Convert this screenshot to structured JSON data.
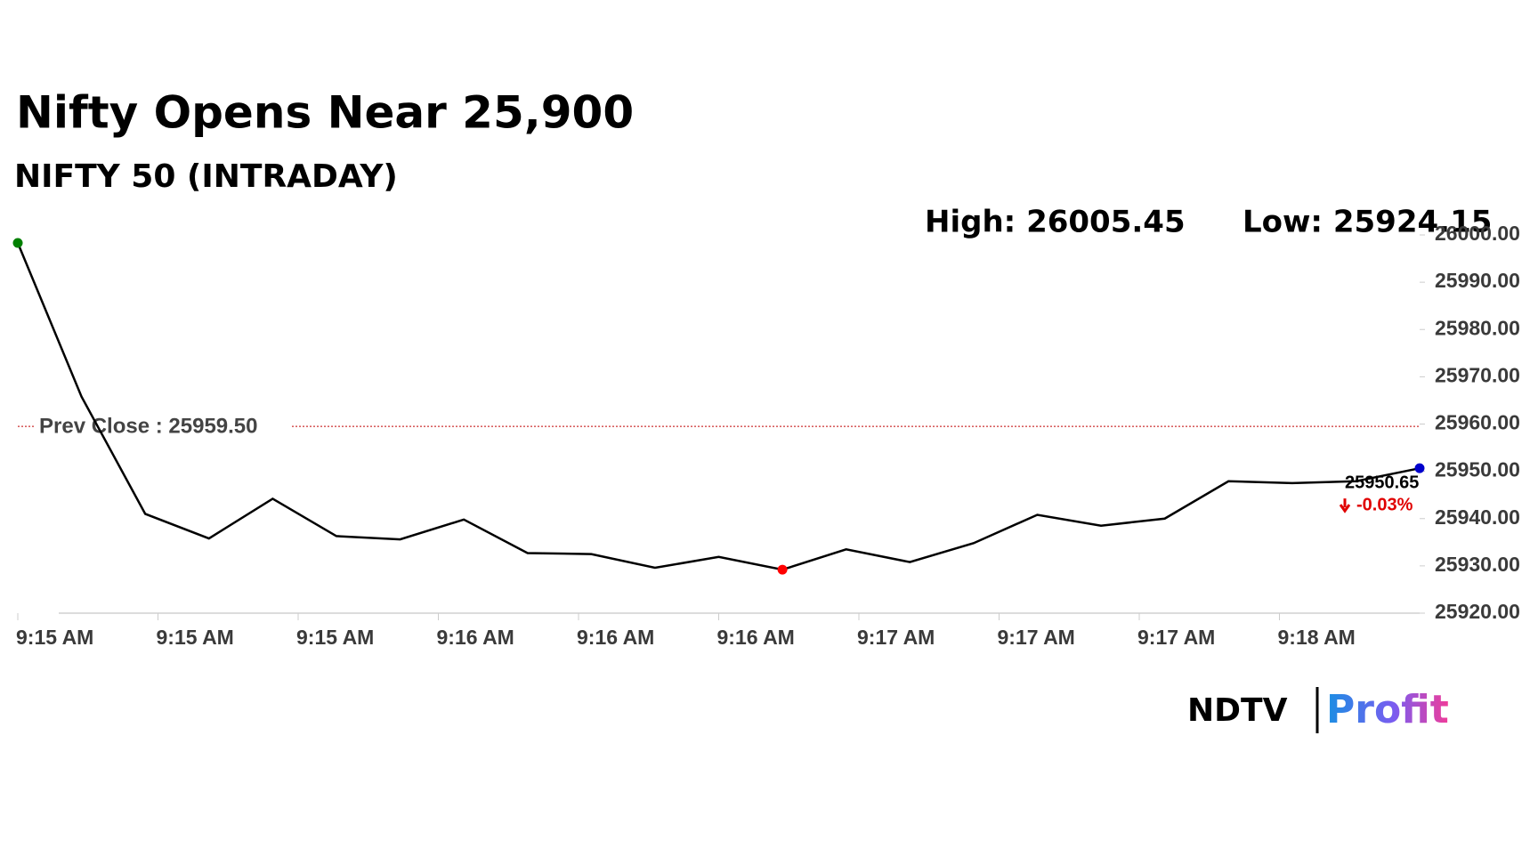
{
  "chart_data": {
    "type": "line",
    "title": "Nifty Opens Near 25,900",
    "subtitle": "NIFTY 50 (INTRADAY)",
    "high_label": "High: 26005.45",
    "low_label": "Low: 25924.15",
    "x": [
      0,
      1,
      2,
      3,
      4,
      5,
      6,
      7,
      8,
      9,
      10,
      11,
      12,
      13,
      14,
      15,
      16,
      17,
      18,
      19,
      20,
      21,
      22
    ],
    "series": [
      {
        "color": "#000000",
        "values": [
          25998.3,
          25965.8,
          25941.0,
          25935.8,
          25944.2,
          25936.3,
          25935.6,
          25939.8,
          25932.7,
          25932.5,
          25929.6,
          25931.9,
          25929.2,
          25933.5,
          25930.8,
          25934.8,
          25940.8,
          25938.5,
          25940.0,
          25947.9,
          25947.5,
          25947.9,
          25950.65
        ]
      }
    ],
    "marker_colors": {
      "first": "#008000",
      "low": "#ff0000",
      "last": "#0000cc"
    },
    "xlim": [
      0,
      22
    ],
    "xticks": [
      {
        "value": 0,
        "label": "9:15 AM"
      },
      {
        "value": 2.2,
        "label": "9:15 AM"
      },
      {
        "value": 4.4,
        "label": "9:15 AM"
      },
      {
        "value": 6.6,
        "label": "9:16 AM"
      },
      {
        "value": 8.8,
        "label": "9:16 AM"
      },
      {
        "value": 11,
        "label": "9:16 AM"
      },
      {
        "value": 13.2,
        "label": "9:17 AM"
      },
      {
        "value": 15.4,
        "label": "9:17 AM"
      },
      {
        "value": 17.6,
        "label": "9:17 AM"
      },
      {
        "value": 19.8,
        "label": "9:18 AM"
      }
    ],
    "ylim": [
      25920,
      26000
    ],
    "yticks": [
      {
        "value": 26000,
        "label": "26000.00"
      },
      {
        "value": 25990,
        "label": "25990.00"
      },
      {
        "value": 25980,
        "label": "25980.00"
      },
      {
        "value": 25970,
        "label": "25970.00"
      },
      {
        "value": 25960,
        "label": "25960.00"
      },
      {
        "value": 25950,
        "label": "25950.00"
      },
      {
        "value": 25940,
        "label": "25940.00"
      },
      {
        "value": 25930,
        "label": "25930.00"
      },
      {
        "value": 25920,
        "label": "25920.00"
      }
    ],
    "reference_line": {
      "label": "Prev Close : 25959.50",
      "value": 25959.5,
      "color": "#c00000"
    },
    "last_label": "25950.65",
    "change_label": "-0.03%",
    "change_color": "#e00000",
    "logo": {
      "left": "NDTV",
      "right": "Profit"
    }
  }
}
